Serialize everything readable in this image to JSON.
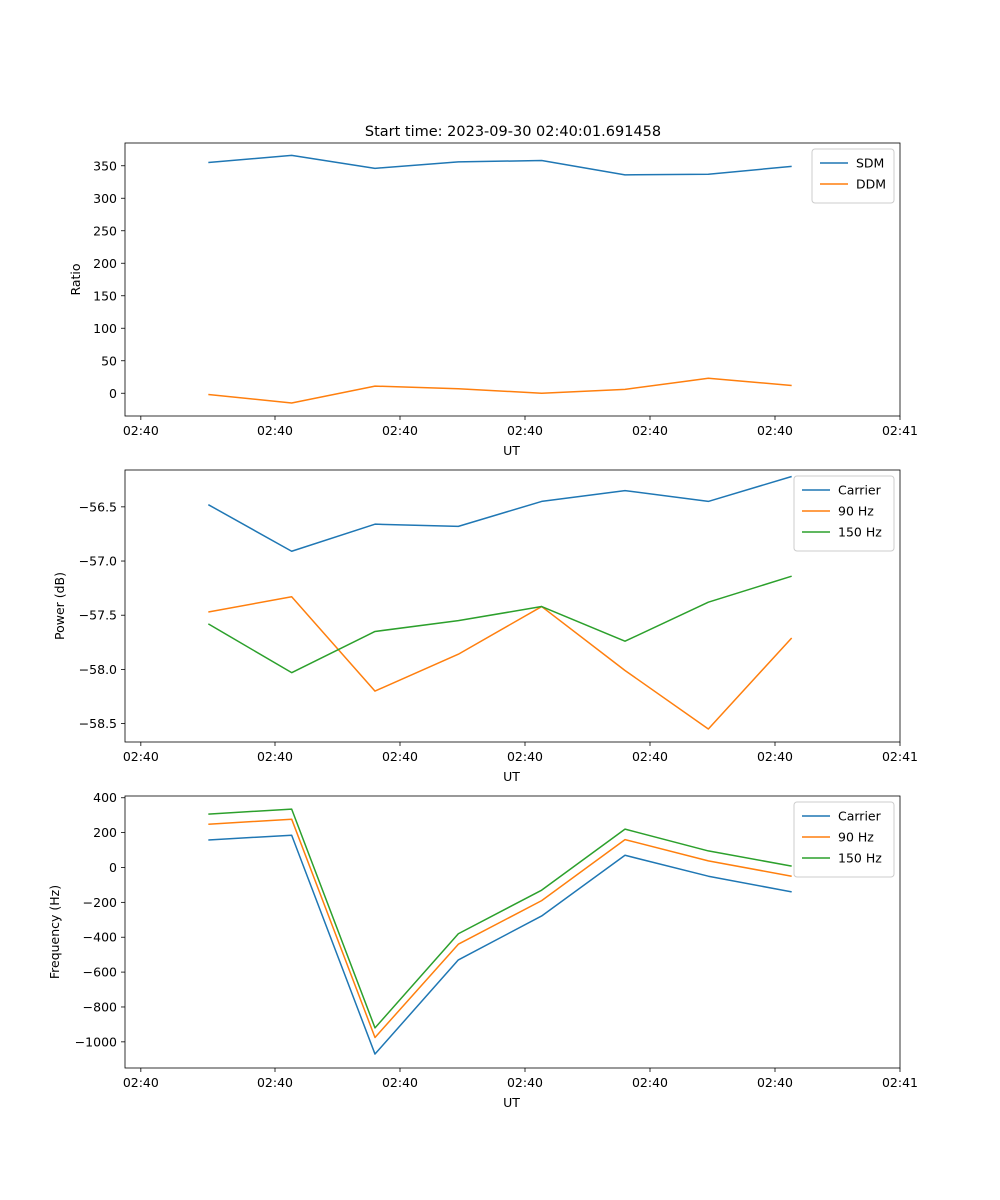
{
  "figure_title": "Start time: 2023-09-30 02:40:01.691458",
  "chart_data": [
    {
      "type": "line",
      "ylabel": "Ratio",
      "xlabel": "UT",
      "xlim": [
        0,
        9.3
      ],
      "ylim": [
        -35,
        385
      ],
      "x": [
        1,
        2,
        3,
        4,
        5,
        6,
        7,
        8
      ],
      "xticks": [
        {
          "value": 0.19,
          "label": "02:40"
        },
        {
          "value": 1.8,
          "label": "02:40"
        },
        {
          "value": 3.3,
          "label": "02:40"
        },
        {
          "value": 4.8,
          "label": "02:40"
        },
        {
          "value": 6.3,
          "label": "02:40"
        },
        {
          "value": 7.8,
          "label": "02:40"
        },
        {
          "value": 9.3,
          "label": "02:41"
        }
      ],
      "yticks": [
        0,
        50,
        100,
        150,
        200,
        250,
        300,
        350
      ],
      "legend": "top-right",
      "series": [
        {
          "name": "SDM",
          "color": "#1f77b4",
          "values": [
            355,
            366,
            346,
            356,
            358,
            336,
            337,
            349
          ]
        },
        {
          "name": "DDM",
          "color": "#ff7f0e",
          "values": [
            -2,
            -15,
            11,
            7,
            0,
            6,
            23,
            12
          ]
        }
      ]
    },
    {
      "type": "line",
      "ylabel": "Power (dB)",
      "xlabel": "UT",
      "xlim": [
        0,
        9.3
      ],
      "ylim": [
        -58.67,
        -56.16
      ],
      "x": [
        1,
        2,
        3,
        4,
        5,
        6,
        7,
        8
      ],
      "xticks": [
        {
          "value": 0.19,
          "label": "02:40"
        },
        {
          "value": 1.8,
          "label": "02:40"
        },
        {
          "value": 3.3,
          "label": "02:40"
        },
        {
          "value": 4.8,
          "label": "02:40"
        },
        {
          "value": 6.3,
          "label": "02:40"
        },
        {
          "value": 7.8,
          "label": "02:40"
        },
        {
          "value": 9.3,
          "label": "02:41"
        }
      ],
      "yticks": [
        {
          "value": -56.5,
          "label": "−56.5"
        },
        {
          "value": -57.0,
          "label": "−57.0"
        },
        {
          "value": -57.5,
          "label": "−57.5"
        },
        {
          "value": -58.0,
          "label": "−58.0"
        },
        {
          "value": -58.5,
          "label": "−58.5"
        }
      ],
      "legend": "top-right",
      "series": [
        {
          "name": "Carrier",
          "color": "#1f77b4",
          "values": [
            -56.48,
            -56.91,
            -56.66,
            -56.68,
            -56.45,
            -56.35,
            -56.45,
            -56.22
          ]
        },
        {
          "name": "90 Hz",
          "color": "#ff7f0e",
          "values": [
            -57.47,
            -57.33,
            -58.2,
            -57.86,
            -57.42,
            -58.01,
            -58.55,
            -57.71
          ]
        },
        {
          "name": "150 Hz",
          "color": "#2ca02c",
          "values": [
            -57.58,
            -58.03,
            -57.65,
            -57.55,
            -57.42,
            -57.74,
            -57.38,
            -57.14
          ]
        }
      ]
    },
    {
      "type": "line",
      "ylabel": "Frequency (Hz)",
      "xlabel": "UT",
      "xlim": [
        0,
        9.3
      ],
      "ylim": [
        -1150,
        410
      ],
      "x": [
        1,
        2,
        3,
        4,
        5,
        6,
        7,
        8
      ],
      "xticks": [
        {
          "value": 0.19,
          "label": "02:40"
        },
        {
          "value": 1.8,
          "label": "02:40"
        },
        {
          "value": 3.3,
          "label": "02:40"
        },
        {
          "value": 4.8,
          "label": "02:40"
        },
        {
          "value": 6.3,
          "label": "02:40"
        },
        {
          "value": 7.8,
          "label": "02:40"
        },
        {
          "value": 9.3,
          "label": "02:41"
        }
      ],
      "yticks": [
        {
          "value": 400,
          "label": "400"
        },
        {
          "value": 200,
          "label": "200"
        },
        {
          "value": 0,
          "label": "0"
        },
        {
          "value": -200,
          "label": "−200"
        },
        {
          "value": -400,
          "label": "−400"
        },
        {
          "value": -600,
          "label": "−600"
        },
        {
          "value": -800,
          "label": "−800"
        },
        {
          "value": -1000,
          "label": "−1000"
        }
      ],
      "legend": "top-right",
      "series": [
        {
          "name": "Carrier",
          "color": "#1f77b4",
          "values": [
            158,
            185,
            -1070,
            -530,
            -278,
            70,
            -50,
            -140
          ]
        },
        {
          "name": "90 Hz",
          "color": "#ff7f0e",
          "values": [
            248,
            277,
            -975,
            -440,
            -190,
            160,
            38,
            -50
          ]
        },
        {
          "name": "150 Hz",
          "color": "#2ca02c",
          "values": [
            306,
            335,
            -920,
            -380,
            -130,
            220,
            95,
            8
          ]
        }
      ]
    }
  ]
}
